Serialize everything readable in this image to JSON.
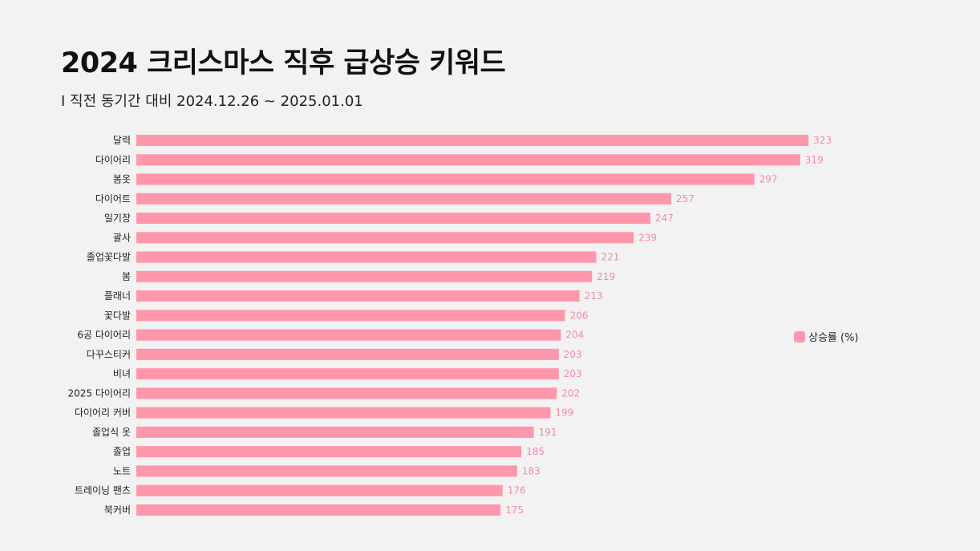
{
  "colors": {
    "bar": "#fe97ab",
    "value_label": "#f08ea3"
  },
  "chart_data": {
    "type": "bar",
    "orientation": "horizontal",
    "title": "2024 크리스마스 직후 급상승 키워드",
    "subtitle": "I 직전 동기간 대비 2024.12.26 ~ 2025.01.01",
    "xlim": [
      0,
      400
    ],
    "legend": {
      "position": "right",
      "entries": [
        "상승률 (%)"
      ]
    },
    "categories": [
      "달력",
      "다이어리",
      "봄옷",
      "다이어트",
      "일기장",
      "괄사",
      "졸업꽃다발",
      "봄",
      "플래너",
      "꽃다발",
      "6공 다이어리",
      "다꾸스티커",
      "비녀",
      "2025 다이어리",
      "다이어리 커버",
      "졸업식 옷",
      "졸업",
      "노트",
      "트레이닝 팬츠",
      "북커버"
    ],
    "series": [
      {
        "name": "상승률 (%)",
        "values": [
          323,
          319,
          297,
          257,
          247,
          239,
          221,
          219,
          213,
          206,
          204,
          203,
          203,
          202,
          199,
          191,
          185,
          183,
          176,
          175
        ]
      }
    ]
  }
}
